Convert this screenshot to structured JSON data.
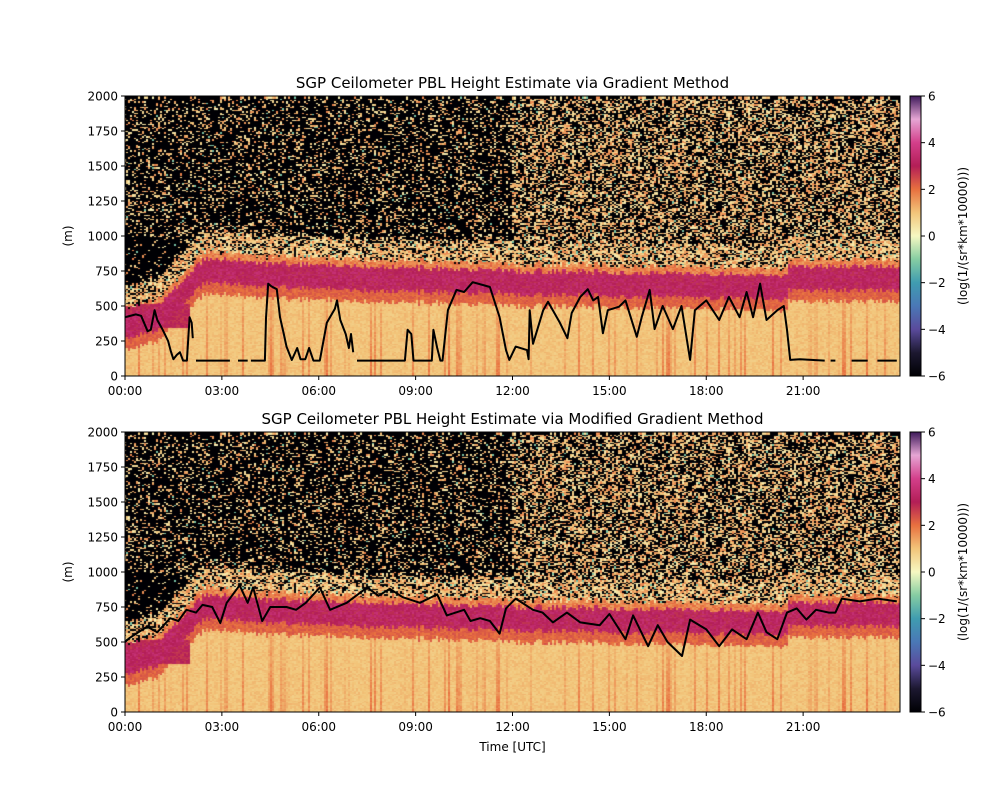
{
  "chart_data": [
    {
      "type": "heatmap",
      "title": "SGP Ceilometer PBL Height Estimate via Gradient Method",
      "xlabel": "",
      "ylabel": "(m)",
      "xlim": [
        "00:00",
        "24:00"
      ],
      "ylim": [
        0,
        2000
      ],
      "x_ticks": [
        "00:00",
        "03:00",
        "06:00",
        "09:00",
        "12:00",
        "15:00",
        "18:00",
        "21:00"
      ],
      "y_ticks": [
        0,
        250,
        500,
        750,
        1000,
        1250,
        1500,
        1750,
        2000
      ],
      "colorbar": {
        "label": "(log(1/(sr*km*10000)))",
        "range": [
          -6,
          6
        ],
        "ticks": [
          -6,
          -4,
          -2,
          0,
          2,
          4,
          6
        ]
      },
      "series": [
        {
          "line_color": "#000000",
          "segments": [
            [
              [
                "00:00",
                420
              ],
              [
                "00:20",
                440
              ],
              [
                "00:30",
                430
              ],
              [
                "00:42",
                320
              ],
              [
                "00:48",
                330
              ],
              [
                "00:55",
                470
              ],
              [
                "01:00",
                400
              ],
              [
                "01:10",
                330
              ],
              [
                "01:20",
                250
              ],
              [
                "01:25",
                180
              ],
              [
                "01:30",
                120
              ],
              [
                "01:36",
                150
              ],
              [
                "01:42",
                170
              ],
              [
                "01:48",
                110
              ],
              [
                "01:55",
                110
              ],
              [
                "02:00",
                420
              ],
              [
                "02:04",
                380
              ],
              [
                "02:06",
                270
              ]
            ],
            [
              [
                "02:12",
                110
              ],
              [
                "03:15",
                110
              ]
            ],
            [
              [
                "03:30",
                110
              ],
              [
                "03:48",
                110
              ]
            ],
            [
              [
                "03:54",
                110
              ],
              [
                "04:20",
                110
              ],
              [
                "04:22",
                414
              ],
              [
                "04:26",
                660
              ],
              [
                "04:32",
                640
              ],
              [
                "04:42",
                620
              ],
              [
                "04:48",
                420
              ],
              [
                "04:55",
                300
              ],
              [
                "05:00",
                210
              ],
              [
                "05:10",
                114
              ],
              [
                "05:20",
                200
              ],
              [
                "05:26",
                120
              ],
              [
                "05:35",
                120
              ],
              [
                "05:42",
                200
              ],
              [
                "05:50",
                110
              ],
              [
                "06:02",
                110
              ],
              [
                "06:15",
                380
              ],
              [
                "06:30",
                480
              ],
              [
                "06:34",
                540
              ],
              [
                "06:40",
                400
              ],
              [
                "06:50",
                300
              ],
              [
                "06:56",
                200
              ],
              [
                "07:00",
                300
              ],
              [
                "07:04",
                170
              ]
            ],
            [
              [
                "07:11",
                110
              ],
              [
                "08:40",
                110
              ],
              [
                "08:45",
                330
              ],
              [
                "08:52",
                300
              ],
              [
                "08:56",
                110
              ],
              [
                "09:30",
                110
              ],
              [
                "09:33",
                330
              ],
              [
                "09:40",
                200
              ],
              [
                "09:46",
                110
              ],
              [
                "09:50",
                110
              ],
              [
                "10:00",
                470
              ],
              [
                "10:16",
                615
              ],
              [
                "10:30",
                600
              ],
              [
                "10:46",
                670
              ],
              [
                "11:05",
                650
              ],
              [
                "11:18",
                636
              ],
              [
                "11:36",
                420
              ],
              [
                "11:48",
                185
              ],
              [
                "11:54",
                115
              ],
              [
                "12:06",
                210
              ],
              [
                "12:27",
                185
              ],
              [
                "12:30",
                120
              ],
              [
                "12:32",
                470
              ],
              [
                "12:38",
                230
              ],
              [
                "12:57",
                470
              ],
              [
                "13:06",
                530
              ],
              [
                "13:28",
                380
              ],
              [
                "13:42",
                270
              ],
              [
                "13:50",
                450
              ],
              [
                "14:06",
                565
              ],
              [
                "14:20",
                620
              ],
              [
                "14:30",
                540
              ],
              [
                "14:39",
                565
              ],
              [
                "14:48",
                305
              ],
              [
                "14:57",
                470
              ],
              [
                "15:18",
                495
              ],
              [
                "15:30",
                540
              ],
              [
                "15:51",
                280
              ],
              [
                "16:00",
                420
              ],
              [
                "16:15",
                615
              ],
              [
                "16:24",
                335
              ],
              [
                "16:39",
                500
              ],
              [
                "16:58",
                335
              ],
              [
                "17:14",
                500
              ],
              [
                "17:30",
                115
              ],
              [
                "17:39",
                470
              ],
              [
                "17:48",
                500
              ],
              [
                "18:00",
                540
              ],
              [
                "18:24",
                400
              ],
              [
                "18:42",
                565
              ],
              [
                "19:02",
                420
              ],
              [
                "19:15",
                600
              ],
              [
                "19:27",
                420
              ],
              [
                "19:40",
                660
              ],
              [
                "19:52",
                400
              ],
              [
                "20:12",
                470
              ],
              [
                "20:24",
                500
              ],
              [
                "20:30",
                330
              ],
              [
                "20:36",
                115
              ],
              [
                "20:54",
                120
              ],
              [
                "21:40",
                110
              ]
            ],
            [
              [
                "21:51",
                110
              ],
              [
                "22:00",
                110
              ]
            ],
            [
              [
                "22:30",
                110
              ],
              [
                "23:00",
                110
              ]
            ],
            [
              [
                "23:18",
                110
              ],
              [
                "23:54",
                110
              ]
            ]
          ]
        }
      ]
    },
    {
      "type": "heatmap",
      "title": "SGP Ceilometer PBL Height Estimate via Modified Gradient Method",
      "xlabel": "Time [UTC]",
      "ylabel": "(m)",
      "xlim": [
        "00:00",
        "24:00"
      ],
      "ylim": [
        0,
        2000
      ],
      "x_ticks": [
        "00:00",
        "03:00",
        "06:00",
        "09:00",
        "12:00",
        "15:00",
        "18:00",
        "21:00"
      ],
      "y_ticks": [
        0,
        250,
        500,
        750,
        1000,
        1250,
        1500,
        1750,
        2000
      ],
      "colorbar": {
        "label": "(log(1/(sr*km*10000)))",
        "range": [
          -6,
          6
        ],
        "ticks": [
          -6,
          -4,
          -2,
          0,
          2,
          4,
          6
        ]
      },
      "series": [
        {
          "line_color": "#000000",
          "segments": [
            [
              [
                "00:00",
                500
              ],
              [
                "00:09",
                530
              ],
              [
                "00:41",
                610
              ],
              [
                "01:00",
                570
              ],
              [
                "01:24",
                670
              ],
              [
                "01:39",
                650
              ],
              [
                "01:54",
                730
              ],
              [
                "02:12",
                710
              ],
              [
                "02:24",
                765
              ],
              [
                "02:42",
                750
              ],
              [
                "02:57",
                635
              ],
              [
                "03:09",
                780
              ],
              [
                "03:33",
                905
              ],
              [
                "03:48",
                780
              ],
              [
                "03:58",
                890
              ],
              [
                "04:15",
                650
              ],
              [
                "04:30",
                750
              ],
              [
                "05:00",
                750
              ],
              [
                "05:18",
                730
              ],
              [
                "05:36",
                780
              ],
              [
                "06:02",
                890
              ],
              [
                "06:21",
                730
              ],
              [
                "06:52",
                780
              ],
              [
                "07:30",
                890
              ],
              [
                "07:51",
                830
              ],
              [
                "08:12",
                880
              ],
              [
                "08:36",
                820
              ],
              [
                "09:08",
                780
              ],
              [
                "09:40",
                840
              ],
              [
                "09:58",
                690
              ],
              [
                "10:30",
                730
              ],
              [
                "10:42",
                650
              ],
              [
                "11:00",
                670
              ],
              [
                "11:18",
                650
              ],
              [
                "11:36",
                560
              ],
              [
                "11:48",
                740
              ],
              [
                "12:06",
                810
              ],
              [
                "12:38",
                730
              ],
              [
                "12:56",
                710
              ],
              [
                "13:15",
                640
              ],
              [
                "13:41",
                710
              ],
              [
                "14:06",
                640
              ],
              [
                "14:42",
                620
              ],
              [
                "15:00",
                700
              ],
              [
                "15:30",
                520
              ],
              [
                "15:44",
                690
              ],
              [
                "16:12",
                470
              ],
              [
                "16:30",
                620
              ],
              [
                "16:48",
                500
              ],
              [
                "17:15",
                400
              ],
              [
                "17:30",
                660
              ],
              [
                "18:00",
                590
              ],
              [
                "18:24",
                470
              ],
              [
                "18:48",
                590
              ],
              [
                "19:15",
                520
              ],
              [
                "19:36",
                710
              ],
              [
                "19:52",
                570
              ],
              [
                "20:12",
                520
              ],
              [
                "20:30",
                710
              ],
              [
                "20:48",
                740
              ],
              [
                "21:06",
                660
              ],
              [
                "21:24",
                730
              ],
              [
                "21:48",
                710
              ],
              [
                "22:00",
                710
              ],
              [
                "22:12",
                810
              ],
              [
                "22:45",
                790
              ],
              [
                "23:18",
                810
              ],
              [
                "23:54",
                790
              ]
            ]
          ]
        }
      ]
    }
  ],
  "colormap": {
    "stops": [
      [
        -6,
        "#000004"
      ],
      [
        -5,
        "#1c1830"
      ],
      [
        -4,
        "#5a4b9c"
      ],
      [
        -3,
        "#4a78b6"
      ],
      [
        -2,
        "#3f9cb0"
      ],
      [
        -1,
        "#86cda2"
      ],
      [
        0,
        "#f6f8c2"
      ],
      [
        1,
        "#f2c57a"
      ],
      [
        2,
        "#e8703f"
      ],
      [
        3,
        "#b31e57"
      ],
      [
        4,
        "#d33f8a"
      ],
      [
        5,
        "#e6a6d4"
      ],
      [
        6,
        "#3e1a5a"
      ]
    ]
  }
}
